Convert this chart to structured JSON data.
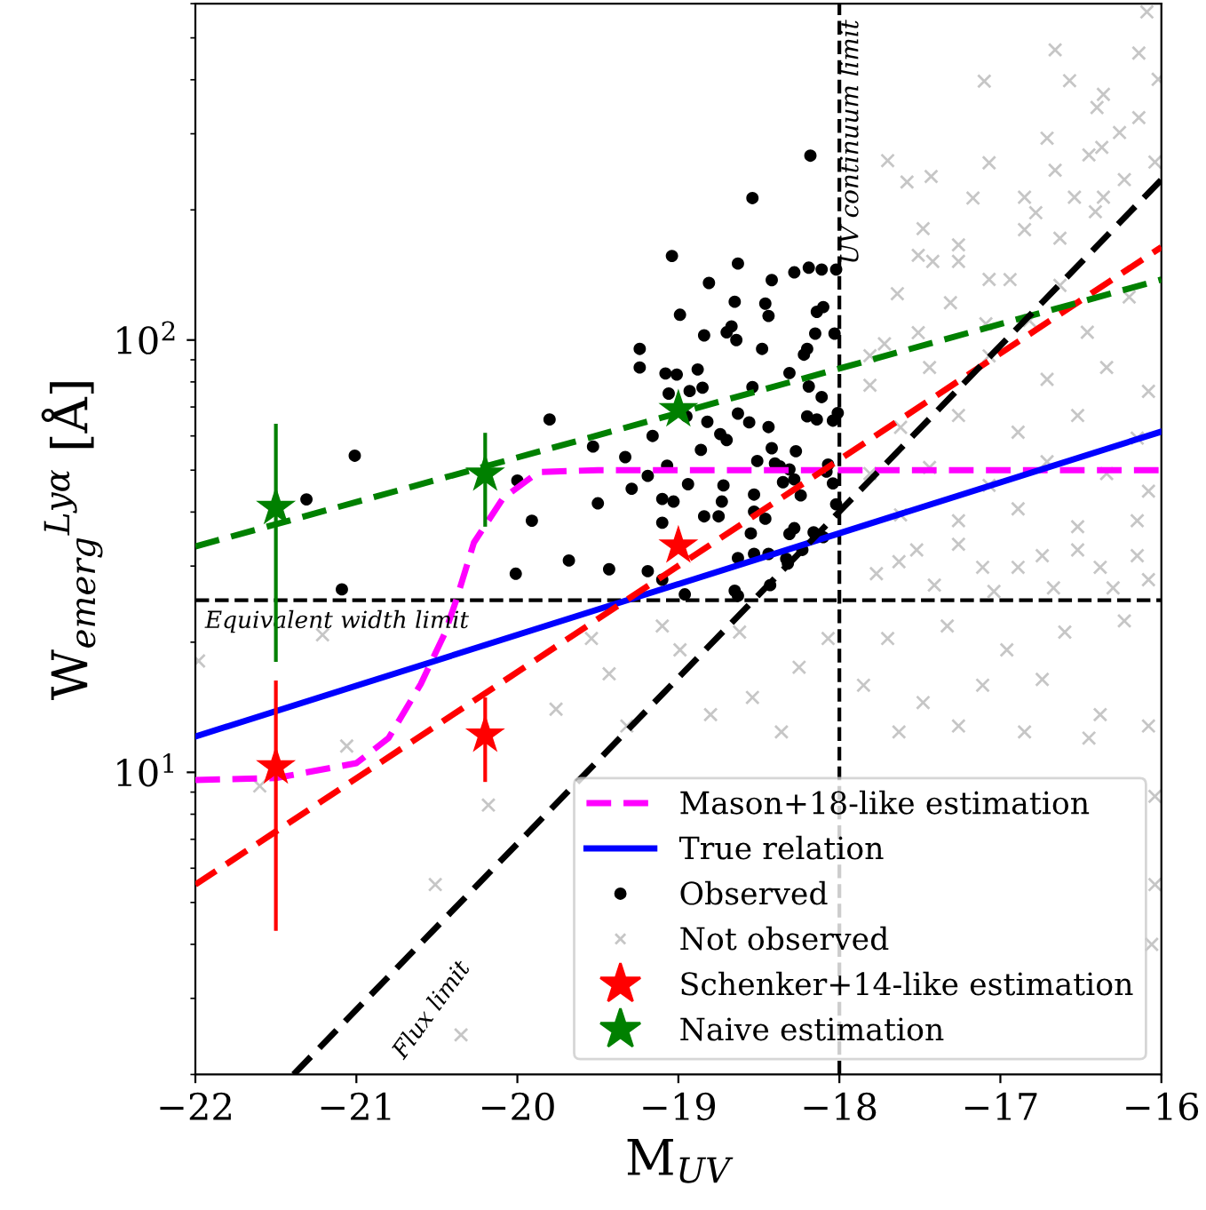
{
  "chart_data": {
    "type": "scatter",
    "xlabel": "M$_{UV}$",
    "ylabel": "W$_{emerg}$$^{Lyα}$ [Å]",
    "xlim": [
      -22,
      -16
    ],
    "xticks": [
      {
        "value": -22,
        "label": "−22"
      },
      {
        "value": -21,
        "label": "−21"
      },
      {
        "value": -20,
        "label": "−20"
      },
      {
        "value": -19,
        "label": "−19"
      },
      {
        "value": -18,
        "label": "−18"
      },
      {
        "value": -17,
        "label": "−17"
      },
      {
        "value": -16,
        "label": "−16"
      }
    ],
    "ylim": [
      2,
      600
    ],
    "log": "y",
    "yticks": [
      {
        "value": 10,
        "label": "10$^{1}$"
      },
      {
        "value": 100,
        "label": "10$^{2}$"
      }
    ],
    "grid": false,
    "legend": "bottom right",
    "ref_lines": [
      {
        "axis": "x",
        "value": -18,
        "label": "UV continuum limit",
        "color": "#000000",
        "line_style": "dashed"
      },
      {
        "axis": "y",
        "value": 25,
        "label": "Equivalent width limit",
        "color": "#000000",
        "line_style": "dashed"
      }
    ],
    "annotations": [
      "Flux limit"
    ],
    "series": [
      {
        "name": "Mason+18-like estimation",
        "type": "line",
        "color": "#ff00ff",
        "line_style": "dashed",
        "x": [
          -22,
          -21.5,
          -21.0,
          -20.8,
          -20.6,
          -20.45,
          -20.38,
          -20.27,
          -20.09,
          -19.87,
          -19.5,
          -16
        ],
        "values": [
          9.6,
          9.7,
          10.5,
          12,
          16,
          21,
          25,
          34,
          43,
          49.5,
          50,
          50
        ]
      },
      {
        "name": "True relation",
        "type": "line",
        "color": "#0000ff",
        "line_style": "solid",
        "x": [
          -22,
          -16
        ],
        "values": [
          12.1,
          61.4
        ]
      },
      {
        "name": "Observed",
        "color": "#000000",
        "marker": "circle",
        "x": [
          -18.18,
          -18.54,
          -19.04,
          -18.63,
          -18.81,
          -18.42,
          -18.28,
          -18.19,
          -18.11,
          -18.02,
          -18.65,
          -18.46,
          -18.44,
          -18.99,
          -18.1,
          -18.14,
          -18.84,
          -18.67,
          -18.7,
          -18.64,
          -18.15,
          -18.03,
          -19.24,
          -18.48,
          -18.2,
          -18.22,
          -19.24,
          -19.08,
          -19.01,
          -18.88,
          -18.31,
          -19.06,
          -18.93,
          -18.85,
          -18.54,
          -18.19,
          -18.11,
          -19.8,
          -18.95,
          -18.82,
          -18.63,
          -18.56,
          -18.2,
          -18.14,
          -18.04,
          -18.01,
          -18.74,
          -18.7,
          -18.44,
          -19.53,
          -19.16,
          -18.86,
          -19.33,
          -18.42,
          -18.27,
          -18.4,
          -18.37,
          -19.07,
          -18.51,
          -18.31,
          -18.07,
          -18.08,
          -19.19,
          -20.0,
          -18.94,
          -18.72,
          -18.35,
          -18.28,
          -18.04,
          -19.29,
          -18.53,
          -18.24,
          -19.5,
          -19.1,
          -19.03,
          -18.73,
          -18.02,
          -19.91,
          -18.84,
          -18.75,
          -18.53,
          -18.46,
          -19.1,
          -18.31,
          -18.28,
          -18.55,
          -18.16,
          -18.1,
          -19.68,
          -19.43,
          -19.19,
          -19.1,
          -18.63,
          -18.53,
          -18.44,
          -18.33,
          -18.23,
          -18.32,
          -20.01,
          -18.43,
          -18.96,
          -18.65,
          -18.63,
          -21.09,
          -21.01,
          -21.31
        ],
        "values": [
          267,
          213,
          156.5,
          150.3,
          135.5,
          137.6,
          143.4,
          147.0,
          145.6,
          145.6,
          122.6,
          121.4,
          113.7,
          114.4,
          119.2,
          116.2,
          102.5,
          107.5,
          104.2,
          100,
          103.5,
          103.5,
          95.4,
          95.4,
          95.4,
          92.5,
          86.4,
          83.7,
          83.2,
          85.5,
          83.9,
          75.2,
          76.2,
          77.6,
          77.8,
          78.1,
          73.8,
          65.5,
          66.6,
          64.7,
          67.6,
          64.5,
          66.6,
          65.5,
          65.1,
          67.8,
          60.6,
          58.7,
          62.9,
          56.7,
          60.0,
          55.7,
          53.6,
          56.2,
          55.3,
          51.8,
          51.0,
          51.2,
          52.5,
          50.2,
          51.5,
          49.6,
          48.5,
          47.3,
          46.4,
          46.1,
          46.9,
          47.6,
          46.6,
          45.3,
          43.9,
          43.7,
          41.9,
          42.9,
          42.3,
          42.3,
          41.7,
          38.2,
          39.1,
          39.1,
          40.1,
          38.6,
          37.8,
          35.6,
          36.7,
          35.7,
          35.9,
          35.0,
          30.9,
          29.5,
          29.2,
          27.9,
          31.3,
          32.0,
          32.0,
          31.2,
          32.7,
          30.4,
          28.8,
          27.1,
          25.8,
          26.3,
          25.6,
          26.5,
          54.0,
          42.8
        ]
      },
      {
        "name": "Not observed",
        "color": "#a0a0a0",
        "marker": "cross",
        "x": [
          -17.1,
          -16.66,
          -16.57,
          -16.14,
          -16.09,
          -16.4,
          -16.36,
          -16.02,
          -16.14,
          -16.26,
          -16.71,
          -16.37,
          -16.45,
          -17.07,
          -17.7,
          -17.58,
          -17.43,
          -17.17,
          -16.85,
          -16.78,
          -16.66,
          -16.54,
          -16.23,
          -16.04,
          -17.48,
          -17.26,
          -17.64,
          -17.51,
          -17.42,
          -16.94,
          -16.85,
          -16.63,
          -16.41,
          -16.36,
          -17.26,
          -17.51,
          -17.72,
          -17.09,
          -17.31,
          -17.81,
          -17.7,
          -17.33,
          -16.96,
          -16.6,
          -16.23,
          -16.08,
          -16.38,
          -16.74,
          -17.11,
          -17.52,
          -17.77,
          -17.85,
          -17.48,
          -17.11,
          -16.74,
          -16.38,
          -16.08,
          -17.63,
          -17.26,
          -16.85,
          -16.45,
          -19.76,
          -19.43,
          -18.99,
          -18.62,
          -18.25,
          -19.32,
          -18.8,
          -18.36,
          -18.54,
          -19.1,
          -19.54,
          -18.07,
          -16.04,
          -16.04,
          -16.06,
          -20.18,
          -20.51,
          -20.35,
          -21.6,
          -21.06,
          -21.21,
          -21.98,
          -17.81,
          -17.44,
          -17.07,
          -16.71,
          -16.34,
          -16.08,
          -17.62,
          -17.26,
          -16.89,
          -16.52,
          -16.15,
          -17.81,
          -17.44,
          -17.07,
          -16.71,
          -16.34,
          -16.08,
          -17.62,
          -17.26,
          -16.89,
          -16.52,
          -16.15,
          -16.82,
          -16.46,
          -16.2,
          -16.63,
          -17.07,
          -17.63,
          -17.26,
          -16.89,
          -16.52,
          -16.15,
          -17.41,
          -16.67,
          -17.04,
          -16.3
        ],
        "values": [
          397,
          469,
          398,
          461,
          574,
          345,
          370,
          401,
          327,
          302,
          293,
          279,
          268,
          257,
          260,
          232,
          239,
          213,
          214,
          197,
          247,
          214,
          235,
          258,
          181,
          166,
          128,
          157,
          152,
          138,
          180,
          172,
          198,
          214,
          152,
          104,
          98,
          109,
          122,
          92,
          20.4,
          21.8,
          19.2,
          21.1,
          22.4,
          27.9,
          29.8,
          31.7,
          29.8,
          32.7,
          28.8,
          15.9,
          14.5,
          15.9,
          16.4,
          13.6,
          12.8,
          12.4,
          12.8,
          12.4,
          12.0,
          14.0,
          16.9,
          19.2,
          21.1,
          17.5,
          12.8,
          13.6,
          12.4,
          14.9,
          21.8,
          20.4,
          20.4,
          8.8,
          5.5,
          4.0,
          8.4,
          5.5,
          2.47,
          9.3,
          11.5,
          20.8,
          18.1,
          78.6,
          86.4,
          91.9,
          81.1,
          86.4,
          76.1,
          62.8,
          66.9,
          61.2,
          66.9,
          59.3,
          49.1,
          50.7,
          46.1,
          52.3,
          49.1,
          44.7,
          39.4,
          38.2,
          40.7,
          37.0,
          38.2,
          110.9,
          104.2,
          125.7,
          133.8,
          138.1,
          30.7,
          33.7,
          29.8,
          32.7,
          31.7,
          27.1,
          26.7,
          26.2,
          26.7
        ]
      },
      {
        "name": "Schenker+14-like estimation",
        "color": "#ff0000",
        "marker": "star",
        "x": [
          -21.5,
          -20.2,
          -19.0
        ],
        "values": [
          10.3,
          12.2,
          33.4
        ],
        "errors": [
          6,
          2.7,
          null
        ]
      },
      {
        "name": "Naive estimation",
        "color": "#008000",
        "marker": "star",
        "x": [
          -21.5,
          -20.2,
          -19.0
        ],
        "values": [
          41,
          49,
          69
        ],
        "errors": [
          23,
          12,
          null
        ]
      },
      {
        "type": "line",
        "color": "#ff0000",
        "line_style": "dashed",
        "x": [
          -22,
          -16
        ],
        "values": [
          5.5,
          164
        ]
      },
      {
        "type": "line",
        "color": "#008000",
        "line_style": "dashed",
        "x": [
          -22,
          -16
        ],
        "values": [
          33.3,
          138
        ]
      },
      {
        "type": "line",
        "color": "#000000",
        "line_style": "dashed",
        "x": [
          -21.39,
          -16
        ],
        "values": [
          2.0,
          235
        ]
      }
    ]
  }
}
